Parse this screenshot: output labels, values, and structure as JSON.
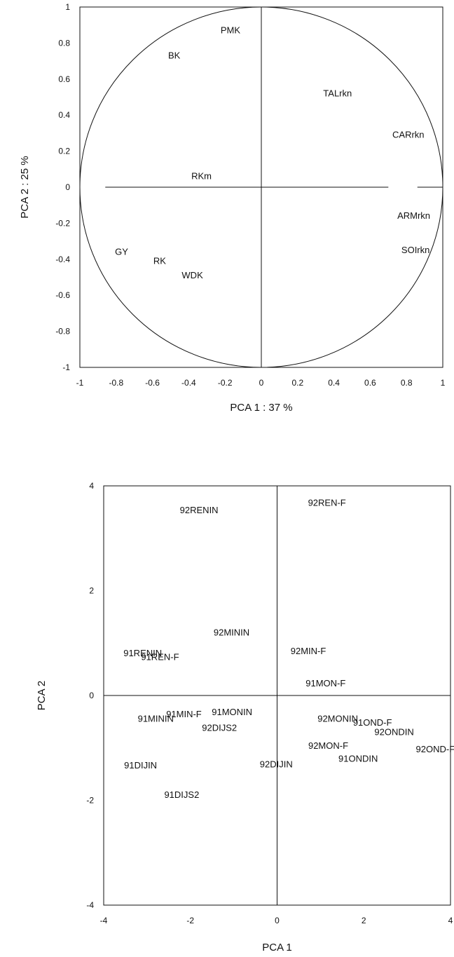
{
  "chart_data": [
    {
      "type": "scatter",
      "xlabel": "PCA 1 : 37 %",
      "ylabel": "PCA 2 : 25 %",
      "xlim": [
        -1,
        1
      ],
      "ylim": [
        -1,
        1
      ],
      "xticks": [
        "-1",
        "-0.8",
        "-0.6",
        "-0.4",
        "-0.2",
        "0",
        "0.2",
        "0.4",
        "0.6",
        "0.8",
        "1"
      ],
      "yticks": [
        "1",
        "0.8",
        "0.6",
        "0.4",
        "0.2",
        "0",
        "-0.2",
        "-0.4",
        "-0.6",
        "-0.8",
        "-1"
      ],
      "unit_circle": true,
      "grid": false,
      "points": [
        {
          "label": "PMK",
          "x": -0.17,
          "y": 0.87
        },
        {
          "label": "BK",
          "x": -0.48,
          "y": 0.73
        },
        {
          "label": "TALrkn",
          "x": 0.42,
          "y": 0.52
        },
        {
          "label": "CARrkn",
          "x": 0.81,
          "y": 0.29
        },
        {
          "label": "RKm",
          "x": -0.33,
          "y": 0.06
        },
        {
          "label": "ARMrkn",
          "x": 0.84,
          "y": -0.16
        },
        {
          "label": "SOIrkn",
          "x": 0.85,
          "y": -0.35
        },
        {
          "label": "GY",
          "x": -0.77,
          "y": -0.36
        },
        {
          "label": "RK",
          "x": -0.56,
          "y": -0.41
        },
        {
          "label": "WDK",
          "x": -0.38,
          "y": -0.49
        }
      ]
    },
    {
      "type": "scatter",
      "xlabel": "PCA 1",
      "ylabel": "PCA 2",
      "xlim": [
        -4,
        4
      ],
      "ylim": [
        -4,
        4
      ],
      "xticks": [
        "-4",
        "-2",
        "0",
        "2",
        "4"
      ],
      "yticks": [
        "4",
        "2",
        "0",
        "-2",
        "-4"
      ],
      "grid": false,
      "points": [
        {
          "label": "92REN-F",
          "x": 1.15,
          "y": 3.67
        },
        {
          "label": "92RENIN",
          "x": -1.8,
          "y": 3.53
        },
        {
          "label": "92MININ",
          "x": -1.05,
          "y": 1.2
        },
        {
          "label": "92MIN-F",
          "x": 0.72,
          "y": 0.84
        },
        {
          "label": "91RENIN",
          "x": -3.1,
          "y": 0.8
        },
        {
          "label": "91REN-F",
          "x": -2.7,
          "y": 0.73
        },
        {
          "label": "91MON-F",
          "x": 1.12,
          "y": 0.23
        },
        {
          "label": "91MONIN",
          "x": -1.04,
          "y": -0.32
        },
        {
          "label": "91MIN-F",
          "x": -2.15,
          "y": -0.36
        },
        {
          "label": "91MININ",
          "x": -2.8,
          "y": -0.45
        },
        {
          "label": "92MONIN",
          "x": 1.4,
          "y": -0.45
        },
        {
          "label": "91OND-F",
          "x": 2.2,
          "y": -0.52
        },
        {
          "label": "92DIJS2",
          "x": -1.33,
          "y": -0.62
        },
        {
          "label": "92ONDIN",
          "x": 2.7,
          "y": -0.7
        },
        {
          "label": "92MON-F",
          "x": 1.18,
          "y": -0.96
        },
        {
          "label": "92OND-F",
          "x": 3.65,
          "y": -1.03
        },
        {
          "label": "91ONDIN",
          "x": 1.87,
          "y": -1.21
        },
        {
          "label": "91DIJIN",
          "x": -3.15,
          "y": -1.34
        },
        {
          "label": "92DIJIN",
          "x": -0.02,
          "y": -1.32
        },
        {
          "label": "91DIJS2",
          "x": -2.2,
          "y": -1.9
        }
      ]
    }
  ]
}
